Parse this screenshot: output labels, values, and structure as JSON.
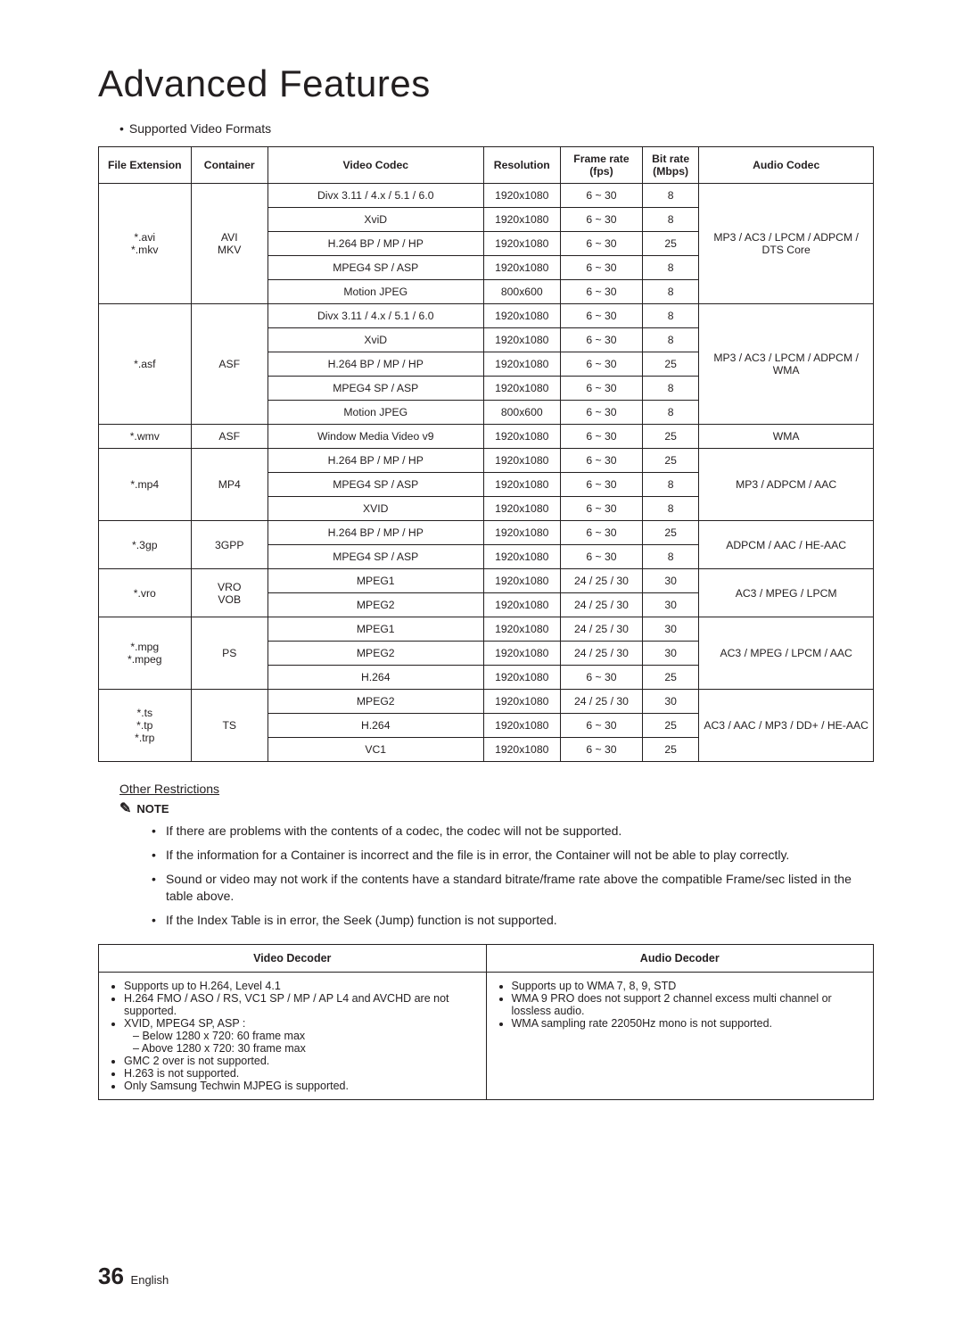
{
  "title": "Advanced Features",
  "subtitle": "Supported Video Formats",
  "table": {
    "headers": [
      "File Extension",
      "Container",
      "Video Codec",
      "Resolution",
      "Frame rate (fps)",
      "Bit rate (Mbps)",
      "Audio Codec"
    ],
    "col_widths": [
      "90",
      "75",
      "210",
      "75",
      "80",
      "55",
      "170"
    ],
    "groups": [
      {
        "ext": "*.avi\n*.mkv",
        "container": "AVI\nMKV",
        "audio": "MP3 / AC3 / LPCM / ADPCM / DTS Core",
        "rows": [
          [
            "Divx 3.11 / 4.x / 5.1 / 6.0",
            "1920x1080",
            "6 ~ 30",
            "8"
          ],
          [
            "XviD",
            "1920x1080",
            "6 ~ 30",
            "8"
          ],
          [
            "H.264 BP / MP / HP",
            "1920x1080",
            "6 ~ 30",
            "25"
          ],
          [
            "MPEG4 SP / ASP",
            "1920x1080",
            "6 ~ 30",
            "8"
          ],
          [
            "Motion JPEG",
            "800x600",
            "6 ~ 30",
            "8"
          ]
        ]
      },
      {
        "ext": "*.asf",
        "container": "ASF",
        "audio": "MP3 / AC3 / LPCM / ADPCM / WMA",
        "rows": [
          [
            "Divx 3.11 / 4.x / 5.1 / 6.0",
            "1920x1080",
            "6 ~ 30",
            "8"
          ],
          [
            "XviD",
            "1920x1080",
            "6 ~ 30",
            "8"
          ],
          [
            "H.264 BP / MP / HP",
            "1920x1080",
            "6 ~ 30",
            "25"
          ],
          [
            "MPEG4 SP / ASP",
            "1920x1080",
            "6 ~ 30",
            "8"
          ],
          [
            "Motion JPEG",
            "800x600",
            "6 ~ 30",
            "8"
          ]
        ]
      },
      {
        "ext": "*.wmv",
        "container": "ASF",
        "audio": "WMA",
        "rows": [
          [
            "Window Media Video v9",
            "1920x1080",
            "6 ~ 30",
            "25"
          ]
        ]
      },
      {
        "ext": "*.mp4",
        "container": "MP4",
        "audio": "MP3 / ADPCM / AAC",
        "rows": [
          [
            "H.264 BP / MP / HP",
            "1920x1080",
            "6 ~ 30",
            "25"
          ],
          [
            "MPEG4 SP / ASP",
            "1920x1080",
            "6 ~ 30",
            "8"
          ],
          [
            "XVID",
            "1920x1080",
            "6 ~ 30",
            "8"
          ]
        ]
      },
      {
        "ext": "*.3gp",
        "container": "3GPP",
        "audio": "ADPCM / AAC / HE-AAC",
        "rows": [
          [
            "H.264 BP / MP / HP",
            "1920x1080",
            "6 ~ 30",
            "25"
          ],
          [
            "MPEG4 SP / ASP",
            "1920x1080",
            "6 ~ 30",
            "8"
          ]
        ]
      },
      {
        "ext": "*.vro",
        "container": "VRO\nVOB",
        "audio": "AC3 / MPEG / LPCM",
        "rows": [
          [
            "MPEG1",
            "1920x1080",
            "24 / 25 / 30",
            "30"
          ],
          [
            "MPEG2",
            "1920x1080",
            "24 / 25 / 30",
            "30"
          ]
        ]
      },
      {
        "ext": "*.mpg\n*.mpeg",
        "container": "PS",
        "audio": "AC3 / MPEG / LPCM / AAC",
        "rows": [
          [
            "MPEG1",
            "1920x1080",
            "24 / 25 / 30",
            "30"
          ],
          [
            "MPEG2",
            "1920x1080",
            "24 / 25 / 30",
            "30"
          ],
          [
            "H.264",
            "1920x1080",
            "6 ~ 30",
            "25"
          ]
        ]
      },
      {
        "ext": "*.ts\n*.tp\n*.trp",
        "container": "TS",
        "audio": "AC3 / AAC / MP3 / DD+ / HE-AAC",
        "rows": [
          [
            "MPEG2",
            "1920x1080",
            "24 / 25 / 30",
            "30"
          ],
          [
            "H.264",
            "1920x1080",
            "6 ~ 30",
            "25"
          ],
          [
            "VC1",
            "1920x1080",
            "6 ~ 30",
            "25"
          ]
        ]
      }
    ]
  },
  "other_restrictions_label": "Other Restrictions",
  "note_label": "NOTE",
  "notes": [
    "If there are problems with the contents of a codec, the codec will not be supported.",
    "If the information for a Container is incorrect and the file is in error, the Container will not be able to play correctly.",
    "Sound or video may not work if the contents have a standard bitrate/frame rate above the compatible Frame/sec listed in the table above.",
    "If the Index Table is in error, the Seek (Jump) function is not supported."
  ],
  "decoder": {
    "headers": [
      "Video Decoder",
      "Audio Decoder"
    ],
    "video": {
      "items": [
        "Supports up to H.264, Level 4.1",
        "H.264 FMO / ASO / RS, VC1 SP / MP / AP L4 and AVCHD are not supported.",
        "XVID, MPEG4 SP, ASP :",
        "GMC 2 over is not supported.",
        "H.263 is not supported.",
        "Only Samsung Techwin MJPEG is supported."
      ],
      "sub": [
        "Below 1280 x 720: 60 frame max",
        "Above 1280 x 720: 30 frame max"
      ]
    },
    "audio": {
      "items": [
        "Supports up to WMA 7, 8, 9, STD",
        "WMA 9 PRO does not support 2 channel excess multi channel or lossless audio.",
        "WMA sampling rate 22050Hz mono is not supported."
      ]
    }
  },
  "footer": {
    "page": "36",
    "lang": "English"
  }
}
